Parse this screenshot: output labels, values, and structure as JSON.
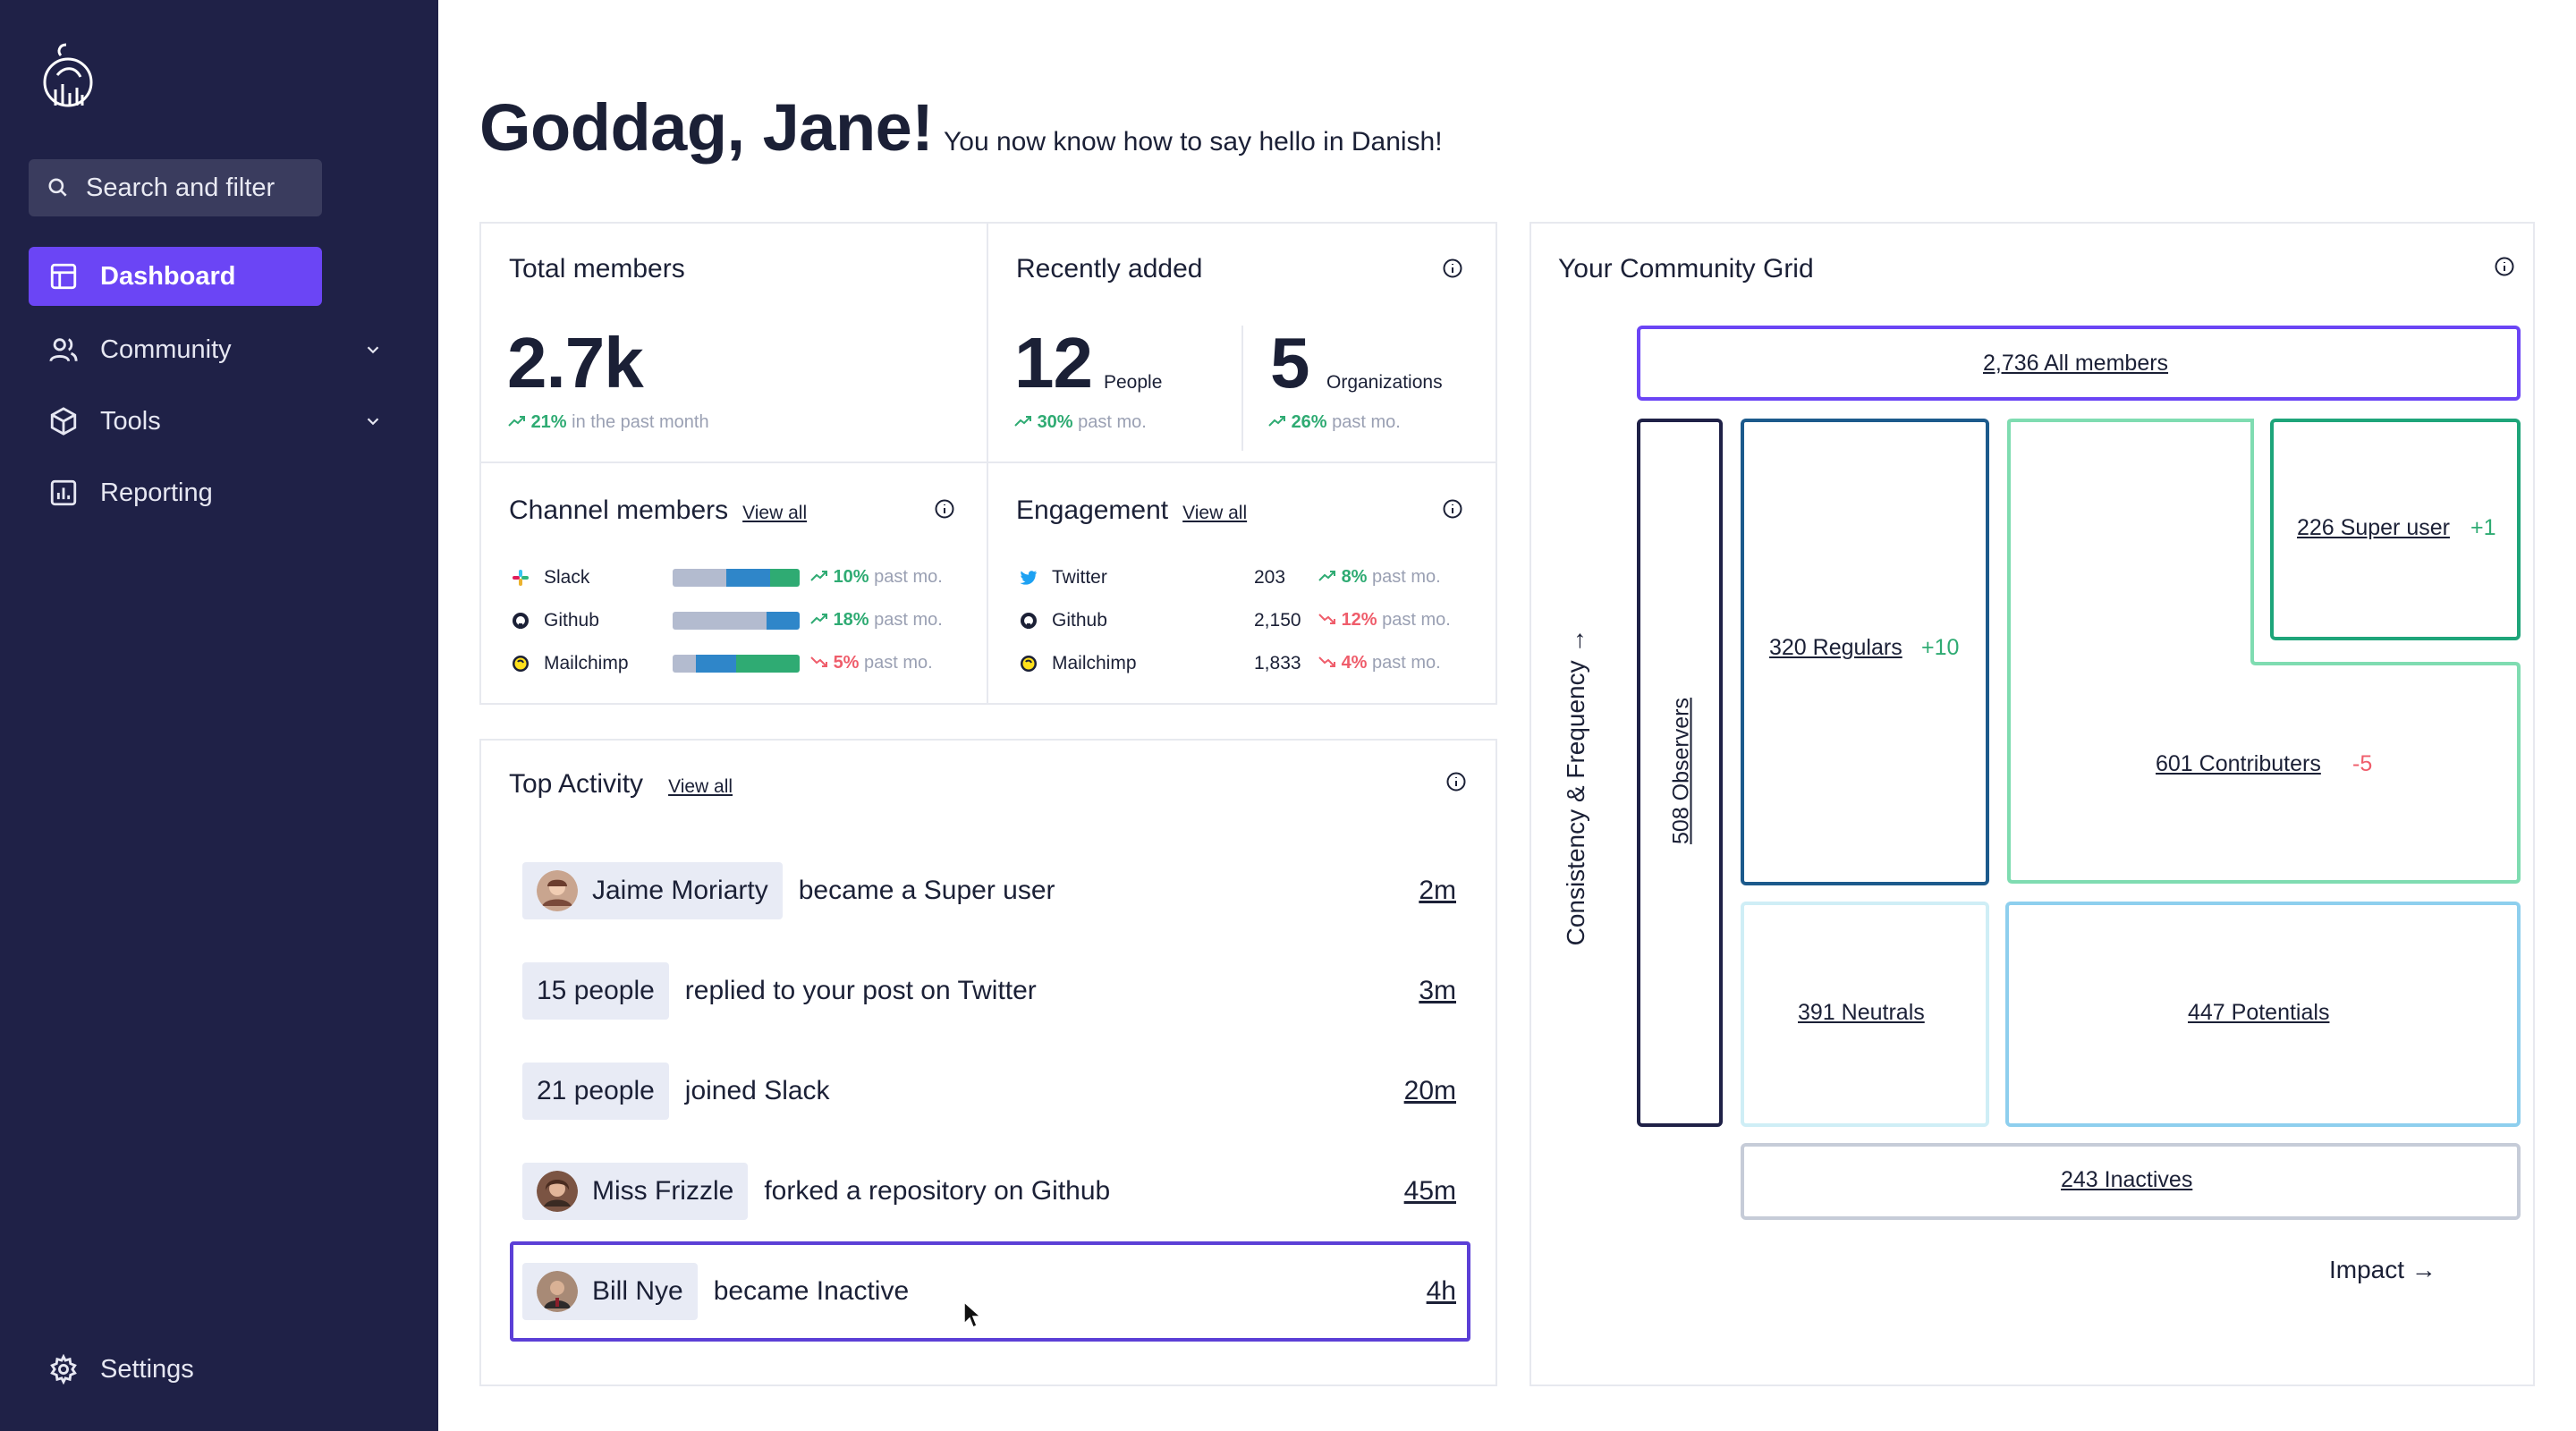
{
  "sidebar": {
    "search_placeholder": "Search and filter",
    "items": [
      {
        "label": "Dashboard"
      },
      {
        "label": "Community"
      },
      {
        "label": "Tools"
      },
      {
        "label": "Reporting"
      }
    ],
    "settings_label": "Settings"
  },
  "header": {
    "greeting": "Goddag, Jane!",
    "subtitle": "You now know how to say hello in Danish!"
  },
  "total_members": {
    "title": "Total members",
    "value": "2.7k",
    "trend_pct": "21%",
    "trend_text": "in the past month"
  },
  "recently_added": {
    "title": "Recently added",
    "people_value": "12",
    "people_label": "People",
    "people_trend": "30%",
    "orgs_value": "5",
    "orgs_label": "Organizations",
    "orgs_trend": "26%",
    "trend_text": "past mo."
  },
  "channel_members": {
    "title": "Channel members",
    "view_all": "View all",
    "rows": [
      {
        "name": "Slack",
        "pct": "10%",
        "direction": "up",
        "bar": [
          0.42,
          0.35,
          0.23
        ]
      },
      {
        "name": "Github",
        "pct": "18%",
        "direction": "up",
        "bar": [
          0.74,
          0.26,
          0.0
        ]
      },
      {
        "name": "Mailchimp",
        "pct": "5%",
        "direction": "down",
        "bar": [
          0.18,
          0.32,
          0.5
        ]
      }
    ],
    "trend_text": "past mo."
  },
  "engagement": {
    "title": "Engagement",
    "view_all": "View all",
    "rows": [
      {
        "name": "Twitter",
        "value": "203",
        "pct": "8%",
        "direction": "up"
      },
      {
        "name": "Github",
        "value": "2,150",
        "pct": "12%",
        "direction": "down"
      },
      {
        "name": "Mailchimp",
        "value": "1,833",
        "pct": "4%",
        "direction": "down"
      }
    ],
    "trend_text": "past mo."
  },
  "top_activity": {
    "title": "Top Activity",
    "view_all": "View all",
    "rows": [
      {
        "actor": "Jaime Moriarty",
        "action": "became a Super user",
        "time": "2m"
      },
      {
        "actor": "15 people",
        "action": "replied to your post on Twitter",
        "time": "3m"
      },
      {
        "actor": "21 people",
        "action": "joined Slack",
        "time": "20m"
      },
      {
        "actor": "Miss Frizzle",
        "action": "forked a repository on Github",
        "time": "45m"
      },
      {
        "actor": "Bill Nye",
        "action": "became Inactive",
        "time": "4h"
      }
    ]
  },
  "community_grid": {
    "title": "Your Community Grid",
    "y_axis": "Consistency & Frequency →",
    "x_axis": "Impact →",
    "all_members": "2,736 All members",
    "observers": "508 Observers",
    "regulars": "320 Regulars",
    "regulars_delta": "+10",
    "super_users": "226 Super user",
    "super_users_delta": "+1",
    "contributors": "601 Contributers",
    "contributors_delta": "-5",
    "neutrals": "391 Neutrals",
    "potentials": "447 Potentials",
    "inactives": "243 Inactives"
  },
  "colors": {
    "sidebar_bg": "#1f2147",
    "accent": "#6b45f5",
    "up": "#2fab73",
    "down": "#ef5d6b"
  }
}
